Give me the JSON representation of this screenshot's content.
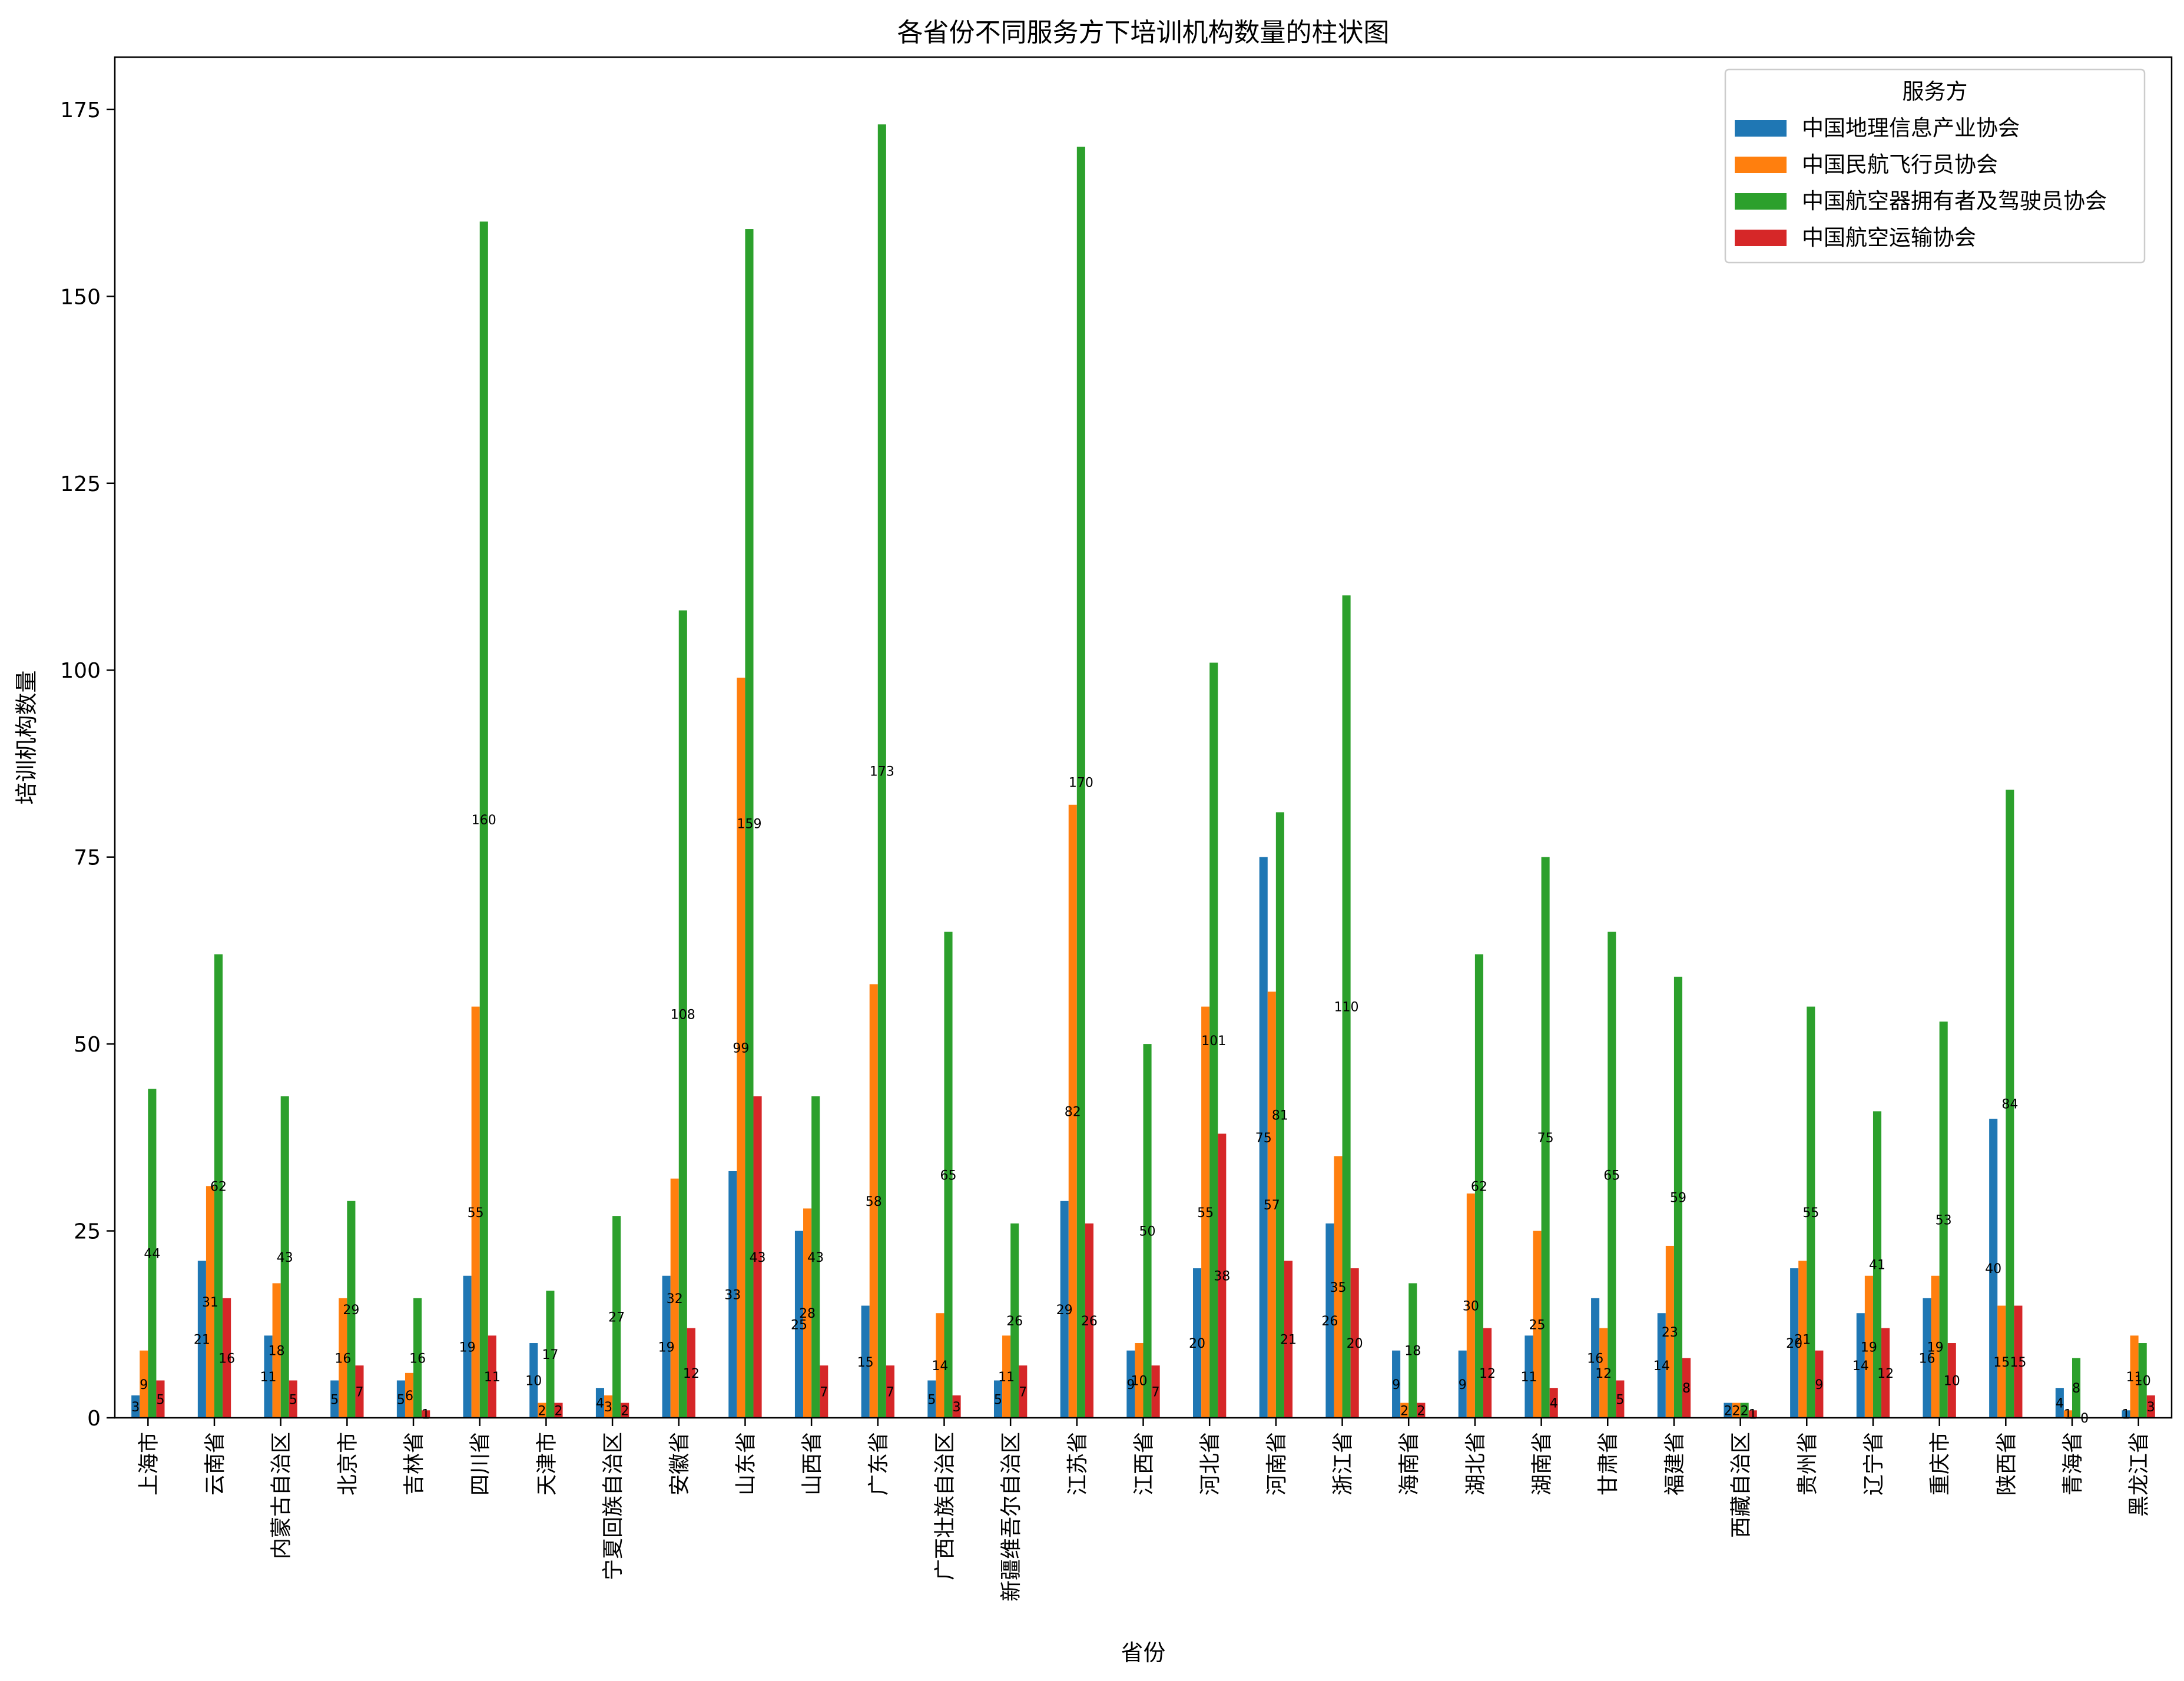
{
  "chart_data": {
    "type": "bar",
    "title": "各省份不同服务方下培训机构数量的柱状图",
    "xlabel": "省份",
    "ylabel": "培训机构数量",
    "ylim": [
      0,
      182
    ],
    "yticks": [
      0,
      25,
      50,
      75,
      100,
      125,
      150,
      175
    ],
    "grid": false,
    "legend": {
      "title": "服务方",
      "position": "top-right"
    },
    "categories": [
      "上海市",
      "云南省",
      "内蒙古自治区",
      "北京市",
      "吉林省",
      "四川省",
      "天津市",
      "宁夏回族自治区",
      "安徽省",
      "山东省",
      "山西省",
      "广东省",
      "广西壮族自治区",
      "新疆维吾尔自治区",
      "江苏省",
      "江西省",
      "河北省",
      "河南省",
      "浙江省",
      "海南省",
      "湖北省",
      "湖南省",
      "甘肃省",
      "福建省",
      "西藏自治区",
      "贵州省",
      "辽宁省",
      "重庆市",
      "陕西省",
      "青海省",
      "黑龙江省"
    ],
    "series": [
      {
        "name": "中国地理信息产业协会",
        "color": "#1f77b4",
        "values": [
          3,
          21,
          11,
          5,
          5,
          19,
          10,
          4,
          19,
          33,
          25,
          15,
          5,
          5,
          29,
          9,
          20,
          75,
          26,
          9,
          9,
          11,
          16,
          14,
          2,
          20,
          14,
          16,
          40,
          4,
          1
        ]
      },
      {
        "name": "中国民航飞行员协会",
        "color": "#ff7f0e",
        "values": [
          9,
          31,
          18,
          16,
          6,
          55,
          2,
          3,
          32,
          99,
          28,
          58,
          14,
          11,
          82,
          10,
          55,
          57,
          35,
          2,
          30,
          25,
          12,
          23,
          2,
          21,
          19,
          19,
          15,
          1,
          11
        ]
      },
      {
        "name": "中国航空器拥有者及驾驶员协会",
        "color": "#2ca02c",
        "values": [
          44,
          62,
          43,
          29,
          16,
          160,
          17,
          27,
          108,
          159,
          43,
          173,
          65,
          26,
          170,
          50,
          101,
          81,
          110,
          18,
          62,
          75,
          65,
          59,
          2,
          55,
          41,
          53,
          84,
          8,
          10
        ]
      },
      {
        "name": "中国航空运输协会",
        "color": "#d62728",
        "values": [
          5,
          16,
          5,
          7,
          1,
          11,
          2,
          2,
          12,
          43,
          7,
          7,
          3,
          7,
          26,
          7,
          38,
          21,
          20,
          2,
          12,
          4,
          5,
          8,
          1,
          9,
          12,
          10,
          15,
          0,
          3
        ]
      }
    ]
  }
}
